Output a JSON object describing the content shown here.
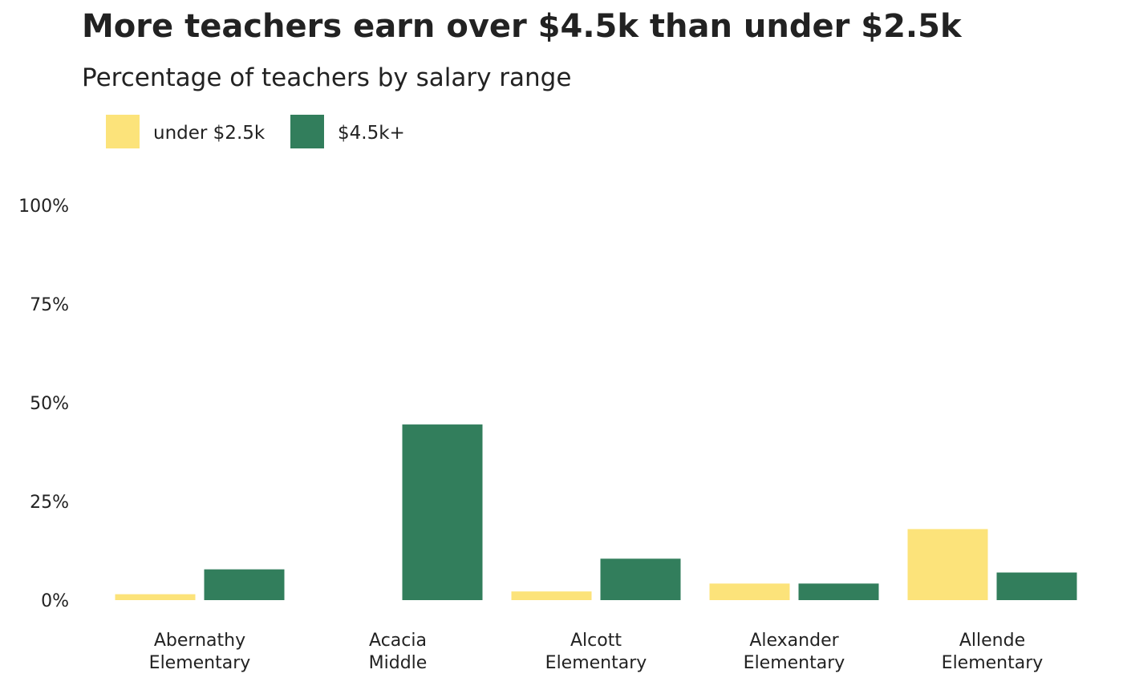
{
  "chart_data": {
    "type": "bar",
    "title": "More teachers earn over $4.5k than under $2.5k",
    "subtitle": "Percentage of teachers by salary range",
    "xlabel": "",
    "ylabel": "",
    "categories": [
      [
        "Abernathy",
        "Elementary"
      ],
      [
        "Acacia",
        "Middle"
      ],
      [
        "Alcott",
        "Elementary"
      ],
      [
        "Alexander",
        "Elementary"
      ],
      [
        "Allende",
        "Elementary"
      ]
    ],
    "series": [
      {
        "name": "under $2.5k",
        "color": "#FCE37A",
        "values": [
          1.5,
          0,
          2.2,
          4.2,
          18.0
        ]
      },
      {
        "name": "$4.5k+",
        "color": "#327E5C",
        "values": [
          7.8,
          44.5,
          10.5,
          4.2,
          7.0
        ]
      }
    ],
    "ylim": [
      0,
      100
    ],
    "yticks": [
      0,
      25,
      50,
      75,
      100
    ],
    "ytick_labels": [
      "0%",
      "25%",
      "50%",
      "75%",
      "100%"
    ],
    "grid": false,
    "legend_position": "top-left"
  }
}
